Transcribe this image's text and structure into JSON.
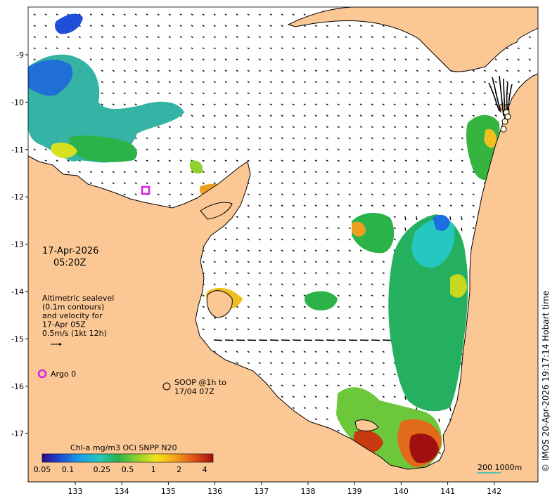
{
  "map": {
    "date_line1": "17-Apr-2026",
    "date_line2": "05:20Z",
    "altimetry_note": [
      "Altimetric sealevel",
      "(0.1m contours)",
      "and velocity for",
      "17-Apr 05Z",
      "0.5m/s (1kt 12h)"
    ],
    "argo_label": "Argo 0",
    "soop_label": [
      "SOOP @1h to",
      "17/04 07Z"
    ],
    "colorbar_title": "Chl-a mg/m3 OCi SNPP N20",
    "colorbar_ticks": [
      "0.05",
      "0.1",
      "0.25",
      "0.5",
      "1",
      "2",
      "4"
    ],
    "colorbar_stops": [
      "#2a0a8c",
      "#1f4fd9",
      "#1aa0e6",
      "#25c7c0",
      "#29b34a",
      "#8fd12e",
      "#f2e51a",
      "#f5a31a",
      "#e0501a",
      "#a01010"
    ],
    "scale_label": "200  1000m",
    "credit": "© IMOS 20-Apr-2026 19:17:14 Hobart time",
    "lon_ticks": [
      "133",
      "134",
      "135",
      "136",
      "137",
      "138",
      "139",
      "140",
      "141",
      "142"
    ],
    "lat_ticks": [
      "-9",
      "-10",
      "-11",
      "-12",
      "-13",
      "-14",
      "-15",
      "-16",
      "-17"
    ],
    "colors": {
      "land": "#fbc895",
      "sea": "#ffffff",
      "argo": "#e020e0"
    }
  }
}
